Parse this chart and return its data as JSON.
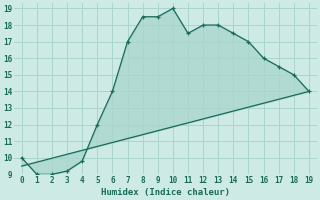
{
  "xlabel": "Humidex (Indice chaleur)",
  "bg_color": "#ceeae4",
  "grid_color": "#a8d5cc",
  "line_color": "#1a6b5a",
  "fill_color": "#5aada0",
  "xlim": [
    -0.5,
    19.5
  ],
  "ylim": [
    9,
    19.3
  ],
  "xticks": [
    0,
    1,
    2,
    3,
    4,
    5,
    6,
    7,
    8,
    9,
    10,
    11,
    12,
    13,
    14,
    15,
    16,
    17,
    18,
    19
  ],
  "yticks": [
    9,
    10,
    11,
    12,
    13,
    14,
    15,
    16,
    17,
    18,
    19
  ],
  "curve1_x": [
    0,
    1,
    2,
    3,
    4,
    5,
    6,
    7,
    8,
    9,
    10,
    11,
    12,
    13,
    14,
    15,
    16,
    17,
    18,
    19
  ],
  "curve1_y": [
    10,
    9,
    9,
    9.2,
    9.8,
    12,
    14,
    17,
    18.5,
    18.5,
    19,
    17.5,
    18,
    18,
    17.5,
    17,
    16,
    15.5,
    15,
    14
  ],
  "curve2_x": [
    0,
    19
  ],
  "curve2_y": [
    9.5,
    14
  ]
}
